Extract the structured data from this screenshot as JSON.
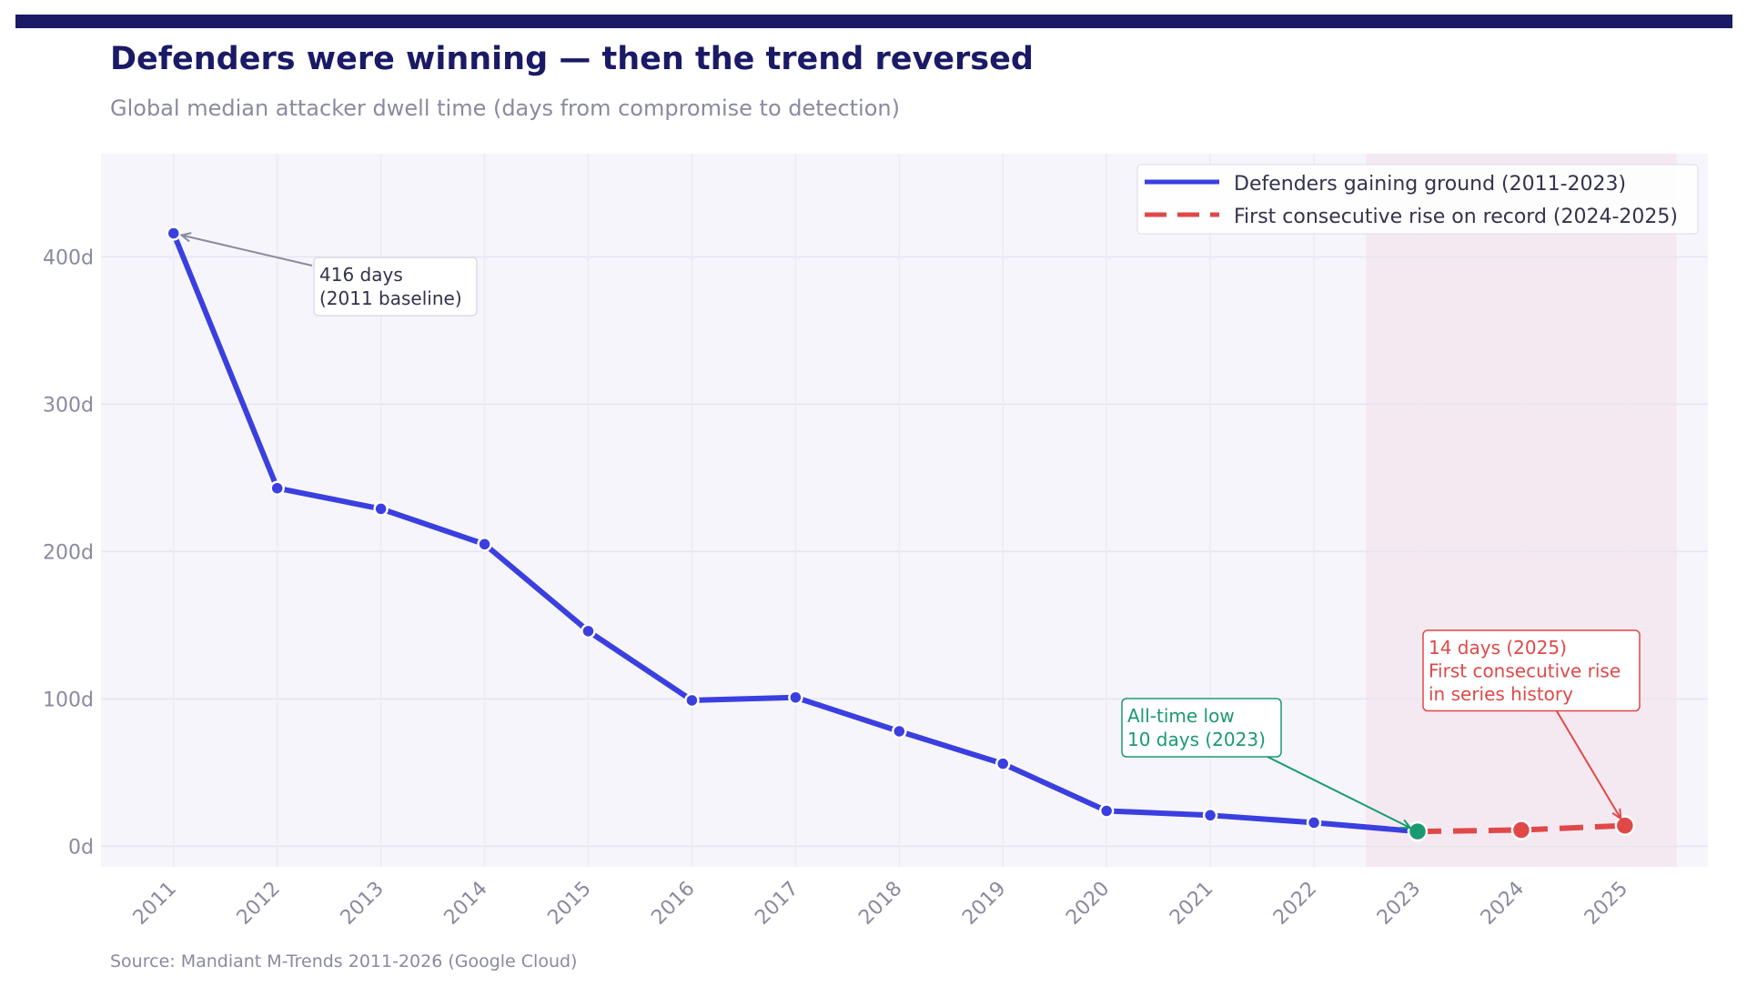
{
  "title": "Defenders were winning — then the trend reversed",
  "subtitle": "Global median attacker dwell time (days from compromise to detection)",
  "source": "Source: Mandiant M-Trends 2011-2026 (Google Cloud)",
  "colors": {
    "header_bar": "#1a1a66",
    "title": "#1a1a66",
    "blue": "#3b3fe0",
    "red": "#e04848",
    "green": "#1a9a70",
    "plot_bg": "#f6f5fb",
    "shade": "#f5e6ee"
  },
  "chart_data": {
    "type": "line",
    "x": [
      2011,
      2012,
      2013,
      2014,
      2015,
      2016,
      2017,
      2018,
      2019,
      2020,
      2021,
      2022,
      2023,
      2024,
      2025
    ],
    "x_tick_labels": [
      "2011",
      "2012",
      "2013",
      "2014",
      "2015",
      "2016",
      "2017",
      "2018",
      "2019",
      "2020",
      "2021",
      "2022",
      "2023",
      "2024",
      "2025"
    ],
    "y_tick_labels": [
      "0d",
      "100d",
      "200d",
      "300d",
      "400d"
    ],
    "y_ticks": [
      0,
      100,
      200,
      300,
      400
    ],
    "ylim": [
      -14,
      470
    ],
    "xlim": [
      2010.3,
      2025.8
    ],
    "grid": true,
    "legend_position": "top-right",
    "series": [
      {
        "name": "Defenders gaining ground (2011-2023)",
        "style": "solid",
        "color": "#3b3fe0",
        "x": [
          2011,
          2012,
          2013,
          2014,
          2015,
          2016,
          2017,
          2018,
          2019,
          2020,
          2021,
          2022,
          2023
        ],
        "values": [
          416,
          243,
          229,
          205,
          146,
          99,
          101,
          78,
          56,
          24,
          21,
          16,
          10
        ]
      },
      {
        "name": "First consecutive rise on record (2024-2025)",
        "style": "dashed",
        "color": "#e04848",
        "x": [
          2023,
          2024,
          2025
        ],
        "values": [
          10,
          11,
          14
        ]
      }
    ],
    "shaded_range": [
      2022.5,
      2025.5
    ],
    "annotations": [
      {
        "id": "baseline",
        "lines": [
          "416 days",
          "(2011 baseline)"
        ],
        "target": [
          2011,
          416
        ],
        "color": "#33334d"
      },
      {
        "id": "low",
        "lines": [
          "All-time low",
          "10 days (2023)"
        ],
        "target": [
          2023,
          10
        ],
        "color": "#1a9a70"
      },
      {
        "id": "rise",
        "lines": [
          "14 days (2025)",
          "First consecutive rise",
          "in series history"
        ],
        "target": [
          2025,
          14
        ],
        "color": "#e04848"
      }
    ]
  }
}
